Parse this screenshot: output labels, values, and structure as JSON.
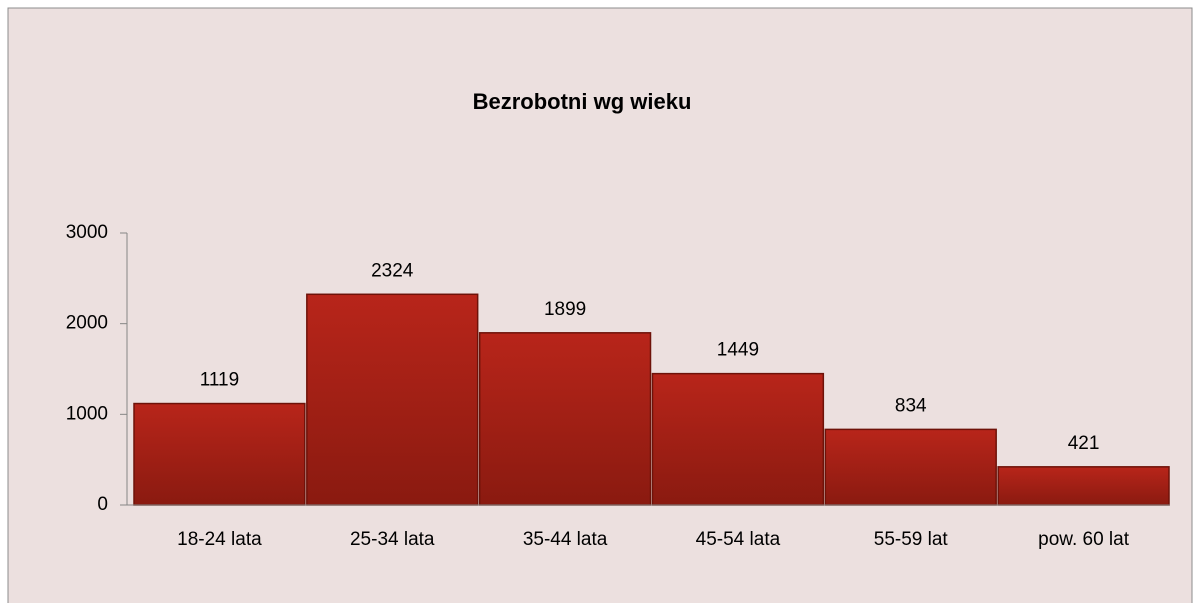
{
  "chart_data": {
    "type": "bar",
    "title": "Bezrobotni wg wieku",
    "categories": [
      "18-24 lata",
      "25-34 lata",
      "35-44 lata",
      "45-54 lata",
      "55-59 lat",
      "pow. 60 lat"
    ],
    "values": [
      1119,
      2324,
      1899,
      1449,
      834,
      421
    ],
    "color": "#b8251a",
    "ylim": [
      0,
      3000
    ],
    "yticks": [
      0,
      1000,
      2000,
      3000
    ]
  }
}
